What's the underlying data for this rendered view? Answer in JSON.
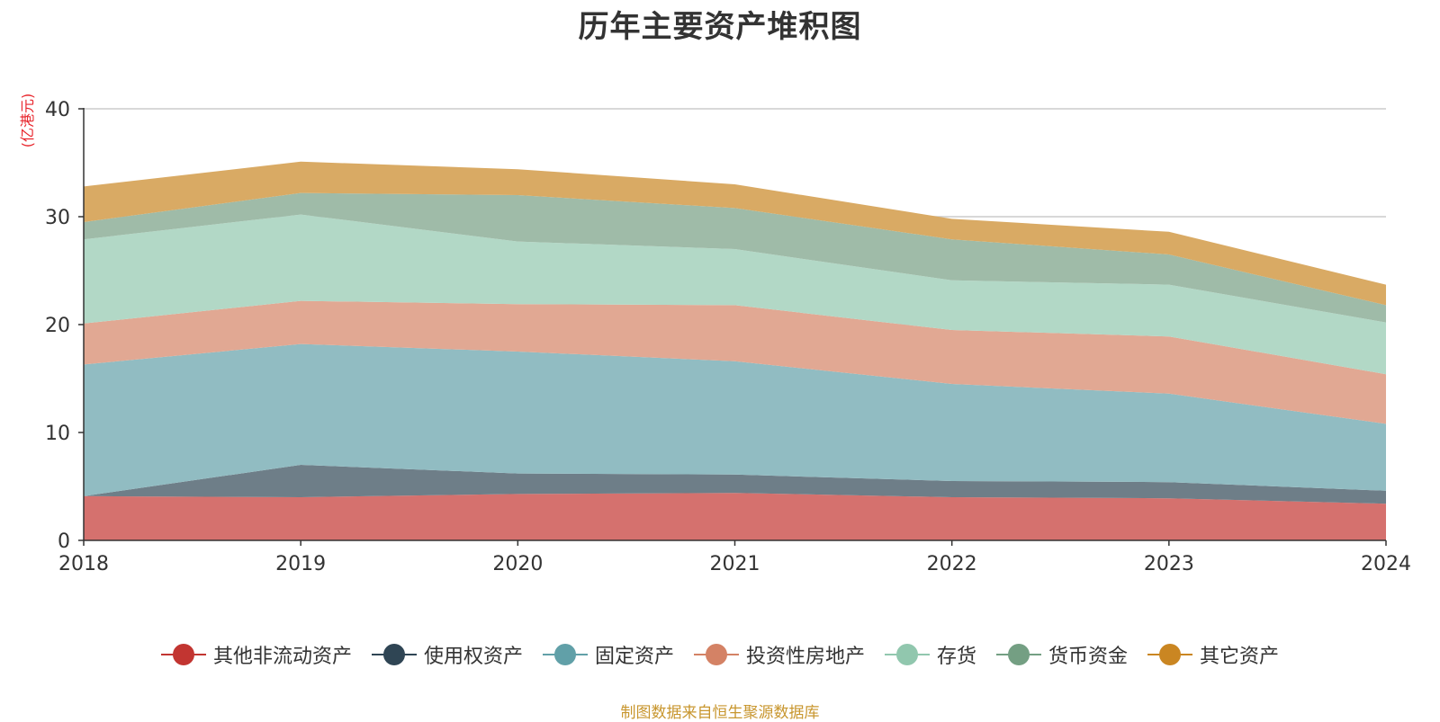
{
  "title": "历年主要资产堆积图",
  "unit_label": "(亿港元)",
  "source_note": "制图数据来自恒生聚源数据库",
  "colors": {
    "title": "#333333",
    "unit": "#e8262d",
    "source": "#c8962e",
    "grid": "#cccccc",
    "axis": "#333333"
  },
  "chart_data": {
    "type": "area",
    "stacked": true,
    "x": [
      "2018",
      "2019",
      "2020",
      "2021",
      "2022",
      "2023",
      "2024"
    ],
    "ylim": [
      0,
      40
    ],
    "yticks": [
      0,
      10,
      20,
      30,
      40
    ],
    "grid": true,
    "legend_position": "bottom",
    "series": [
      {
        "name": "其他非流动资产",
        "color": "#c23531",
        "fill": "#d5716e",
        "values": [
          4.1,
          4.0,
          4.3,
          4.4,
          4.0,
          3.9,
          3.4
        ]
      },
      {
        "name": "使用权资产",
        "color": "#2f4554",
        "fill": "#6e7e88",
        "values": [
          0.0,
          3.0,
          1.9,
          1.7,
          1.5,
          1.5,
          1.2
        ]
      },
      {
        "name": "固定资产",
        "color": "#61a0a8",
        "fill": "#91bcc2",
        "values": [
          12.2,
          11.2,
          11.3,
          10.5,
          9.0,
          8.2,
          6.2
        ]
      },
      {
        "name": "投资性房地产",
        "color": "#d48265",
        "fill": "#e1a893",
        "values": [
          3.8,
          4.0,
          4.4,
          5.2,
          5.0,
          5.3,
          4.6
        ]
      },
      {
        "name": "存货",
        "color": "#91c7ae",
        "fill": "#b2d8c6",
        "values": [
          7.8,
          8.0,
          5.8,
          5.2,
          4.6,
          4.8,
          4.8
        ]
      },
      {
        "name": "货币资金",
        "color": "#749f83",
        "fill": "#9fbba8",
        "values": [
          1.6,
          2.0,
          4.3,
          3.8,
          3.8,
          2.8,
          1.6
        ]
      },
      {
        "name": "其它资产",
        "color": "#ca8622",
        "fill": "#d9aa64",
        "values": [
          3.3,
          2.9,
          2.4,
          2.2,
          1.9,
          2.1,
          1.9
        ]
      }
    ]
  }
}
